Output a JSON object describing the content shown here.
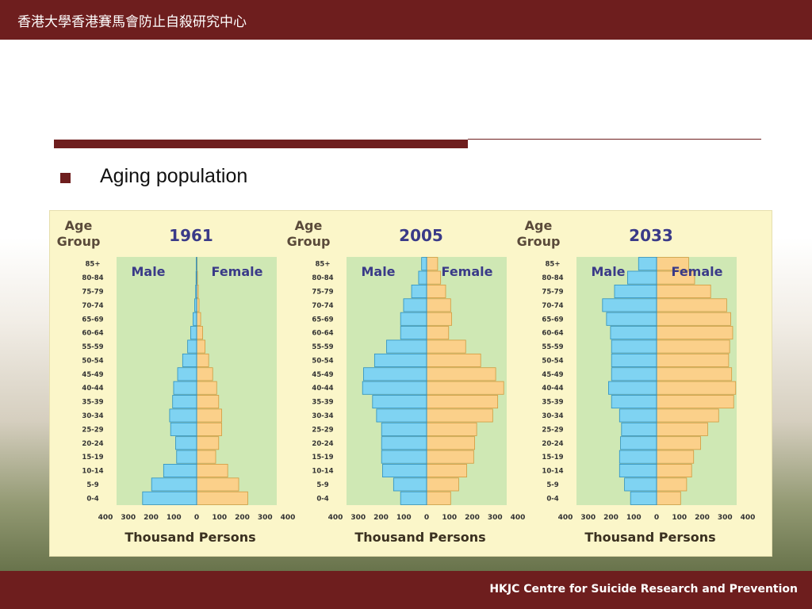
{
  "header": {
    "title": "香港大學香港賽馬會防止自殺研究中心"
  },
  "bullet": {
    "text": "Aging population"
  },
  "footer": {
    "text": "HKJC Centre for Suicide Research and Prevention"
  },
  "colors": {
    "brand": "#6e1e1e",
    "male": "#7fd3f2",
    "female": "#fbd08a",
    "panel": "#fbf6c9",
    "plot_bg": "#cfe8b4"
  },
  "chart_data": [
    {
      "type": "bar",
      "title": "1961",
      "age_label": "Age Group",
      "male_label": "Male",
      "female_label": "Female",
      "xlabel": "Thousand Persons",
      "xticks": [
        "400",
        "300",
        "200",
        "100",
        "0",
        "100",
        "200",
        "300",
        "400"
      ],
      "xlim": [
        -400,
        400
      ],
      "categories": [
        "0-4",
        "5-9",
        "10-14",
        "15-19",
        "20-24",
        "25-29",
        "30-34",
        "35-39",
        "40-44",
        "45-49",
        "50-54",
        "55-59",
        "60-64",
        "65-69",
        "70-74",
        "75-79",
        "80-84",
        "85+"
      ],
      "series": [
        {
          "name": "Male",
          "values": [
            270,
            225,
            165,
            100,
            105,
            130,
            135,
            120,
            115,
            95,
            70,
            45,
            30,
            18,
            10,
            5,
            3,
            2
          ]
        },
        {
          "name": "Female",
          "values": [
            255,
            210,
            155,
            95,
            110,
            125,
            125,
            110,
            100,
            80,
            60,
            42,
            30,
            20,
            12,
            8,
            4,
            2
          ]
        }
      ]
    },
    {
      "type": "bar",
      "title": "2005",
      "age_label": "Age Group",
      "male_label": "Male",
      "female_label": "Female",
      "xlabel": "Thousand Persons",
      "xticks": [
        "400",
        "300",
        "200",
        "100",
        "0",
        "100",
        "200",
        "300",
        "400"
      ],
      "xlim": [
        -400,
        400
      ],
      "categories": [
        "0-4",
        "5-9",
        "10-14",
        "15-19",
        "20-24",
        "25-29",
        "30-34",
        "35-39",
        "40-44",
        "45-49",
        "50-54",
        "55-59",
        "60-64",
        "65-69",
        "70-74",
        "75-79",
        "80-84",
        "85+"
      ],
      "series": [
        {
          "name": "Male",
          "values": [
            130,
            165,
            220,
            225,
            225,
            225,
            250,
            270,
            320,
            315,
            260,
            200,
            130,
            130,
            115,
            75,
            40,
            25
          ]
        },
        {
          "name": "Female",
          "values": [
            120,
            160,
            200,
            235,
            240,
            250,
            330,
            355,
            385,
            345,
            270,
            195,
            110,
            125,
            120,
            95,
            70,
            55
          ]
        }
      ]
    },
    {
      "type": "bar",
      "title": "2033",
      "age_label": "Age Group",
      "male_label": "Male",
      "female_label": "Female",
      "xlabel": "Thousand Persons",
      "xticks": [
        "400",
        "300",
        "200",
        "100",
        "0",
        "100",
        "200",
        "300",
        "400"
      ],
      "xlim": [
        -400,
        400
      ],
      "categories": [
        "0-4",
        "5-9",
        "10-14",
        "15-19",
        "20-24",
        "25-29",
        "30-34",
        "35-39",
        "40-44",
        "45-49",
        "50-54",
        "55-59",
        "60-64",
        "65-69",
        "70-74",
        "75-79",
        "80-84",
        "85+"
      ],
      "series": [
        {
          "name": "Male",
          "values": [
            130,
            160,
            185,
            185,
            180,
            175,
            185,
            225,
            240,
            225,
            225,
            225,
            230,
            250,
            270,
            210,
            145,
            90
          ]
        },
        {
          "name": "Female",
          "values": [
            120,
            150,
            175,
            185,
            220,
            255,
            310,
            385,
            395,
            375,
            360,
            365,
            380,
            370,
            350,
            270,
            190,
            160
          ]
        }
      ]
    }
  ]
}
